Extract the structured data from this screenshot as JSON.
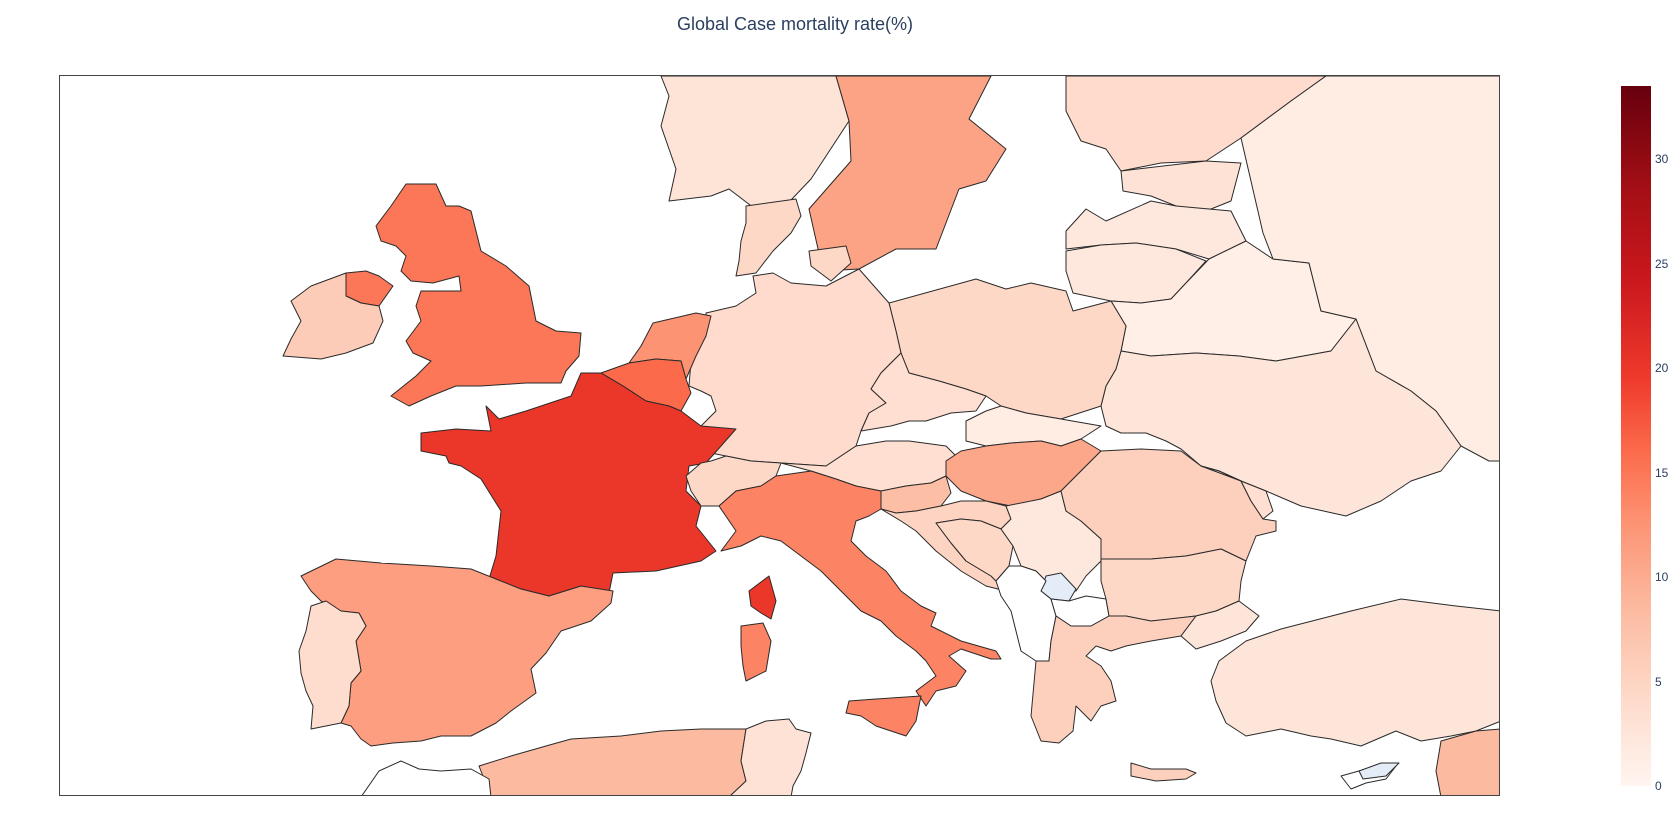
{
  "chart_data": {
    "type": "choropleth",
    "title": "Global Case mortality rate(%)",
    "colorscale": "Reds",
    "colorbar": {
      "min": 0,
      "max": 33.5,
      "ticks": [
        "0",
        "5",
        "10",
        "15",
        "20",
        "25",
        "30"
      ]
    },
    "regions": [
      {
        "name": "France",
        "value": 20
      },
      {
        "name": "United Kingdom",
        "value": 15
      },
      {
        "name": "Italy",
        "value": 14
      },
      {
        "name": "Belgium",
        "value": 16
      },
      {
        "name": "Netherlands",
        "value": 12.5
      },
      {
        "name": "Spain",
        "value": 11.5
      },
      {
        "name": "Sweden",
        "value": 11
      },
      {
        "name": "Hungary",
        "value": 10.5
      },
      {
        "name": "Algeria",
        "value": 8.5
      },
      {
        "name": "Ireland",
        "value": 6
      },
      {
        "name": "Slovenia",
        "value": 8
      },
      {
        "name": "Romania",
        "value": 5.5
      },
      {
        "name": "Greece",
        "value": 5.5
      },
      {
        "name": "Poland",
        "value": 4.5
      },
      {
        "name": "Germany",
        "value": 4
      },
      {
        "name": "Switzerland",
        "value": 4.5
      },
      {
        "name": "Austria",
        "value": 3.5
      },
      {
        "name": "Czechia",
        "value": 3.5
      },
      {
        "name": "Denmark",
        "value": 4.5
      },
      {
        "name": "Portugal",
        "value": 3.8
      },
      {
        "name": "Finland",
        "value": 4
      },
      {
        "name": "Norway",
        "value": 2.8
      },
      {
        "name": "Turkey",
        "value": 2.5
      },
      {
        "name": "Tunisia",
        "value": 3
      },
      {
        "name": "Bulgaria",
        "value": 4.5
      },
      {
        "name": "Serbia",
        "value": 2
      },
      {
        "name": "Bosnia and Herzegovina",
        "value": 4.5
      },
      {
        "name": "Croatia",
        "value": 5
      },
      {
        "name": "Slovakia",
        "value": 1.5
      },
      {
        "name": "Lithuania",
        "value": 2
      },
      {
        "name": "Latvia",
        "value": 2
      },
      {
        "name": "Estonia",
        "value": 3
      },
      {
        "name": "Belarus",
        "value": 1
      },
      {
        "name": "Ukraine",
        "value": 2.5
      },
      {
        "name": "Russia",
        "value": 1.5
      },
      {
        "name": "Moldova",
        "value": 3.5
      },
      {
        "name": "Syria",
        "value": 8.5
      }
    ]
  }
}
